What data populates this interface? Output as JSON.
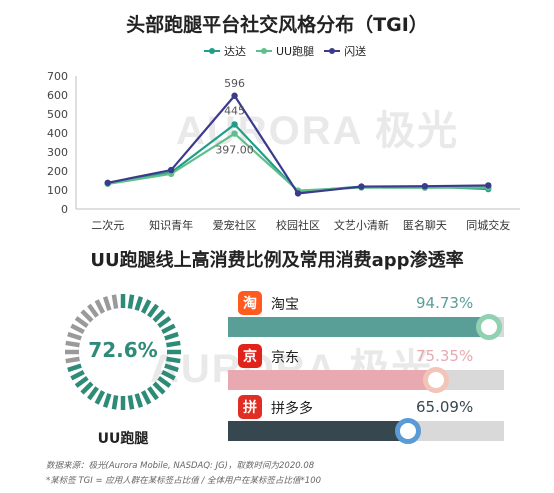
{
  "watermark": "AURORA 极光",
  "chart_data": [
    {
      "type": "line",
      "title": "头部跑腿平台社交风格分布（TGI）",
      "categories": [
        "二次元",
        "知识青年",
        "爱宠社区",
        "校园社区",
        "文艺小清新",
        "匿名聊天",
        "同城交友"
      ],
      "ylim": [
        0,
        700
      ],
      "yticks": [
        0,
        100,
        200,
        300,
        400,
        500,
        600,
        700
      ],
      "grid": false,
      "legend_position": "top",
      "series": [
        {
          "name": "达达",
          "color": "#1f9e89",
          "values": [
            135,
            192,
            445,
            92,
            118,
            118,
            105
          ]
        },
        {
          "name": "UU跑腿",
          "color": "#5fbf8a",
          "values": [
            132,
            185,
            397,
            97,
            113,
            112,
            113
          ]
        },
        {
          "name": "闪送",
          "color": "#3b3a8c",
          "values": [
            138,
            205,
            596,
            82,
            118,
            120,
            124
          ]
        }
      ],
      "annotations": [
        {
          "category": "爱宠社区",
          "series": "闪送",
          "label": "596"
        },
        {
          "category": "爱宠社区",
          "series": "达达",
          "label": "445"
        },
        {
          "category": "爱宠社区",
          "series": "UU跑腿",
          "label": "397.00"
        }
      ]
    },
    {
      "type": "bar",
      "title": "UU跑腿线上高消费比例及常用消费app渗透率",
      "categories": [
        "淘宝",
        "京东",
        "拼多多"
      ],
      "values": [
        94.73,
        75.35,
        65.09
      ],
      "value_labels": [
        "94.73%",
        "75.35%",
        "65.09%"
      ],
      "xlim": [
        0,
        100
      ],
      "colors": [
        "#5a9e98",
        "#e8a9b1",
        "#37474f"
      ]
    }
  ],
  "ring": {
    "value": 72.6,
    "label": "72.6%",
    "caption": "UU跑腿",
    "color": "#2e8b78",
    "rest_color": "#9a9a9a"
  },
  "apps": [
    {
      "name": "淘宝",
      "icon": "淘",
      "icon_color": "#ff5a1f",
      "value_label": "94.73%",
      "value": 94.73,
      "bar_color": "#5a9e98",
      "dot_color": "#8fd1b0",
      "text_color": "#5a9e98"
    },
    {
      "name": "京东",
      "icon": "京",
      "icon_color": "#e2231a",
      "value_label": "75.35%",
      "value": 75.35,
      "bar_color": "#e8a9b1",
      "dot_color": "#f3c4b8",
      "text_color": "#e8a9b1"
    },
    {
      "name": "拼多多",
      "icon": "拼",
      "icon_color": "#e02e24",
      "value_label": "65.09%",
      "value": 65.09,
      "bar_color": "#37474f",
      "dot_color": "#5b9bd5",
      "text_color": "#37474f"
    }
  ],
  "notes": {
    "source": "数据来源：极光(Aurora Mobile, NASDAQ: JG)，取数时间为2020.08",
    "tgi": "*某标签 TGI = 应用人群在某标签占比值 / 全体用户在某标签占比值*100"
  }
}
